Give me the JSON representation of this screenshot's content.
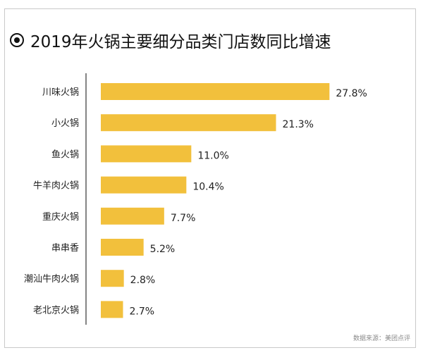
{
  "source_label": "数据来源：美团点评",
  "chart_data": {
    "type": "bar",
    "orientation": "horizontal",
    "title": "2019年火锅主要细分品类门店数同比增速",
    "categories": [
      "川味火锅",
      "小火锅",
      "鱼火锅",
      "牛羊肉火锅",
      "重庆火锅",
      "串串香",
      "潮汕牛肉火锅",
      "老北京火锅"
    ],
    "values": [
      27.8,
      21.3,
      11.0,
      10.4,
      7.7,
      5.2,
      2.8,
      2.7
    ],
    "value_labels": [
      "27.8%",
      "21.3%",
      "11.0%",
      "10.4%",
      "7.7%",
      "5.2%",
      "2.8%",
      "2.7%"
    ],
    "xlim": [
      0,
      30
    ],
    "grid": false,
    "legend": "none",
    "bar_color": "#f2c03c",
    "axis_color": "#333333"
  }
}
